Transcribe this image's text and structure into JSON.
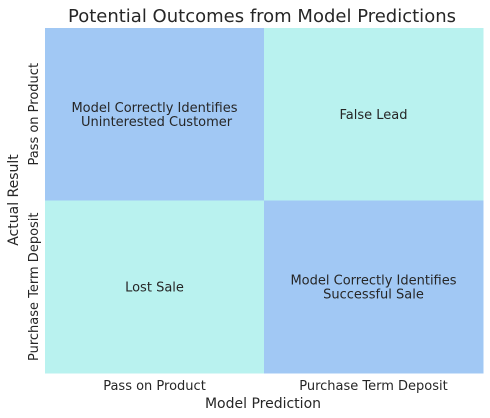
{
  "chart_data": {
    "type": "heatmap",
    "title": "Potential Outcomes from Model Predictions",
    "xlabel": "Model Prediction",
    "ylabel": "Actual Result",
    "x_categories": [
      "Pass on Product",
      "Purchase Term Deposit"
    ],
    "y_categories": [
      "Pass on Product",
      "Purchase Term Deposit"
    ],
    "cells": [
      [
        {
          "label": [
            "Model Correctly Identifies",
            " Uninterested Customer"
          ],
          "color": "#a1c8f4"
        },
        {
          "label": [
            "False Lead"
          ],
          "color": "#b9f2ef"
        }
      ],
      [
        {
          "label": [
            "Lost Sale"
          ],
          "color": "#b9f2ef"
        },
        {
          "label": [
            "Model Correctly Identifies",
            "Successful Sale"
          ],
          "color": "#a1c8f4"
        }
      ]
    ],
    "colorbar": false,
    "grid": false
  }
}
